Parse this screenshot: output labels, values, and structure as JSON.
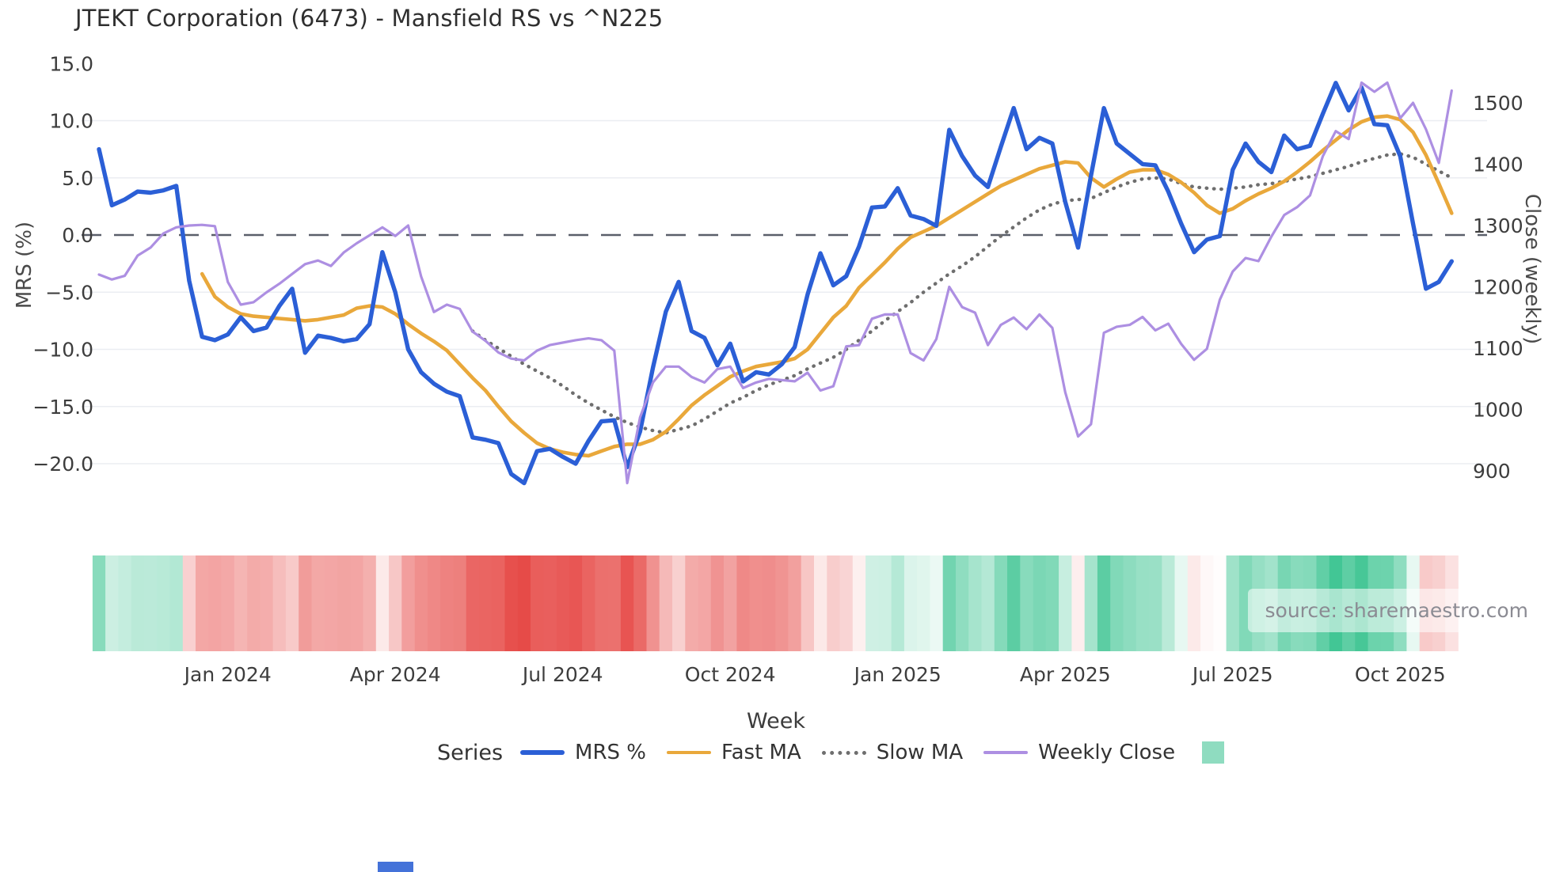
{
  "title": "JTEKT Corporation (6473) - Mansfield RS vs ^N225",
  "source": "source: sharemaestro.com",
  "axes": {
    "left": {
      "label": "MRS (%)",
      "ticks": [
        {
          "label": "15.0",
          "value": 15.0
        },
        {
          "label": "10.0",
          "value": 10.0
        },
        {
          "label": "5.0",
          "value": 5.0
        },
        {
          "label": "0.0",
          "value": 0.0
        },
        {
          "label": "−5.0",
          "value": -5.0
        },
        {
          "label": "−10.0",
          "value": -10.0
        },
        {
          "label": "−15.0",
          "value": -15.0
        },
        {
          "label": "−20.0",
          "value": -20.0
        }
      ]
    },
    "right": {
      "label": "Close (weekly)",
      "ticks": [
        {
          "label": "1500",
          "value": 1500
        },
        {
          "label": "1400",
          "value": 1400
        },
        {
          "label": "1300",
          "value": 1300
        },
        {
          "label": "1200",
          "value": 1200
        },
        {
          "label": "1100",
          "value": 1100
        },
        {
          "label": "1000",
          "value": 1000
        },
        {
          "label": "900",
          "value": 900
        }
      ]
    },
    "x": {
      "label": "Week",
      "ticks": [
        {
          "label": "Jan 2024",
          "week": 10
        },
        {
          "label": "Apr 2024",
          "week": 23
        },
        {
          "label": "Jul 2024",
          "week": 36
        },
        {
          "label": "Oct 2024",
          "week": 49
        },
        {
          "label": "Jan 2025",
          "week": 62
        },
        {
          "label": "Apr 2025",
          "week": 75
        },
        {
          "label": "Jul 2025",
          "week": 88
        },
        {
          "label": "Oct 2025",
          "week": 101
        }
      ]
    }
  },
  "legend": {
    "title": "Series",
    "items": [
      {
        "label": "MRS %",
        "color": "#2b5fd6",
        "style": "solid"
      },
      {
        "label": "Fast MA",
        "color": "#e9a83b",
        "style": "solid"
      },
      {
        "label": "Slow MA",
        "color": "#6e6e6e",
        "style": "dotted"
      },
      {
        "label": "Weekly Close",
        "color": "#ad8fe2",
        "style": "solid"
      }
    ],
    "heat_swatch_color": "#8fdcc0"
  },
  "misc": {
    "bottom_fragment_color": "#4472d9"
  },
  "chart_data": {
    "type": "line",
    "title": "JTEKT Corporation (6473) - Mansfield RS vs ^N225",
    "xlabel": "Week",
    "ylabel_left": "MRS (%)",
    "ylabel_right": "Close (weekly)",
    "ylim_left": [
      -22.5,
      15.5
    ],
    "ylim_right": [
      870,
      1545
    ],
    "grid": "left-ticks only, light; dashed dark line at 0.0",
    "legend_position": "bottom",
    "x_unit": "weekly points, week 0 = late Oct 2023, week 105 = early Nov 2025",
    "zero_line_color": "#5a5f6a",
    "grid_color": "#ebedf2",
    "series": [
      {
        "name": "MRS %",
        "axis": "left",
        "color": "#2b5fd6",
        "style": "solid",
        "values": [
          7.5,
          2.6,
          3.1,
          3.8,
          3.7,
          3.9,
          4.3,
          -4.0,
          -8.9,
          -9.2,
          -8.7,
          -7.2,
          -8.4,
          -8.1,
          -6.2,
          -4.7,
          -10.3,
          -8.8,
          -9.0,
          -9.3,
          -9.1,
          -7.8,
          -1.5,
          -5.0,
          -10.0,
          -12.0,
          -13.0,
          -13.7,
          -14.1,
          -17.7,
          -17.9,
          -18.2,
          -20.9,
          -21.7,
          -18.9,
          -18.7,
          -19.4,
          -20.0,
          -18.0,
          -16.3,
          -16.2,
          -20.3,
          -17.2,
          -11.6,
          -6.7,
          -4.1,
          -8.4,
          -9.0,
          -11.4,
          -9.5,
          -12.8,
          -12.0,
          -12.2,
          -11.3,
          -9.8,
          -5.2,
          -1.6,
          -4.4,
          -3.6,
          -1.0,
          2.4,
          2.5,
          4.1,
          1.7,
          1.4,
          0.8,
          9.2,
          6.9,
          5.2,
          4.2,
          7.7,
          11.1,
          7.5,
          8.5,
          8.0,
          2.9,
          -1.1,
          5.2,
          11.1,
          8.0,
          7.1,
          6.2,
          6.1,
          3.8,
          1.0,
          -1.5,
          -0.4,
          -0.1,
          5.7,
          8.0,
          6.4,
          5.5,
          8.7,
          7.5,
          7.8,
          10.6,
          13.3,
          10.9,
          12.9,
          9.7,
          9.6,
          6.9,
          1.0,
          -4.7,
          -4.1,
          -2.3
        ]
      },
      {
        "name": "Fast MA",
        "axis": "left",
        "color": "#e9a83b",
        "style": "solid",
        "values": [
          null,
          null,
          null,
          null,
          null,
          null,
          null,
          null,
          -3.4,
          -5.4,
          -6.3,
          -6.9,
          -7.1,
          -7.2,
          -7.3,
          -7.4,
          -7.5,
          -7.4,
          -7.2,
          -7.0,
          -6.4,
          -6.2,
          -6.3,
          -6.9,
          -7.8,
          -8.6,
          -9.3,
          -10.1,
          -11.3,
          -12.5,
          -13.6,
          -15.0,
          -16.3,
          -17.3,
          -18.2,
          -18.7,
          -19.0,
          -19.2,
          -19.3,
          -18.9,
          -18.5,
          -18.3,
          -18.3,
          -17.9,
          -17.2,
          -16.1,
          -14.9,
          -14.0,
          -13.2,
          -12.4,
          -11.9,
          -11.5,
          -11.3,
          -11.1,
          -10.8,
          -10.0,
          -8.6,
          -7.2,
          -6.2,
          -4.6,
          -3.5,
          -2.4,
          -1.2,
          -0.2,
          0.3,
          0.8,
          1.5,
          2.2,
          2.9,
          3.6,
          4.3,
          4.8,
          5.3,
          5.8,
          6.1,
          6.4,
          6.3,
          5.0,
          4.2,
          4.9,
          5.5,
          5.7,
          5.7,
          5.3,
          4.6,
          3.7,
          2.6,
          1.9,
          2.3,
          3.0,
          3.6,
          4.1,
          4.7,
          5.5,
          6.4,
          7.4,
          8.3,
          9.2,
          9.9,
          10.3,
          10.4,
          10.1,
          9.0,
          7.0,
          4.5,
          1.9
        ]
      },
      {
        "name": "Slow MA",
        "axis": "left",
        "color": "#6e6e6e",
        "style": "dotted",
        "values": [
          null,
          null,
          null,
          null,
          null,
          null,
          null,
          null,
          null,
          null,
          null,
          null,
          null,
          null,
          null,
          null,
          null,
          null,
          null,
          null,
          null,
          null,
          null,
          null,
          null,
          null,
          null,
          null,
          null,
          -8.4,
          -9.2,
          -9.9,
          -10.6,
          -11.3,
          -11.9,
          -12.5,
          -13.2,
          -14.0,
          -14.7,
          -15.3,
          -15.9,
          -16.4,
          -16.8,
          -17.1,
          -17.3,
          -17.0,
          -16.7,
          -16.1,
          -15.4,
          -14.7,
          -14.2,
          -13.6,
          -13.1,
          -12.7,
          -12.3,
          -11.7,
          -11.2,
          -10.7,
          -10.0,
          -9.2,
          -8.4,
          -7.5,
          -6.7,
          -5.9,
          -5.0,
          -4.2,
          -3.4,
          -2.7,
          -1.9,
          -1.0,
          -0.1,
          0.7,
          1.5,
          2.2,
          2.7,
          3.0,
          3.1,
          3.2,
          3.7,
          4.2,
          4.6,
          4.9,
          5.0,
          4.9,
          4.5,
          4.2,
          4.1,
          4.0,
          4.1,
          4.2,
          4.4,
          4.5,
          4.7,
          4.9,
          5.1,
          5.4,
          5.7,
          6.0,
          6.4,
          6.7,
          7.0,
          7.1,
          6.8,
          6.2,
          5.6,
          5.0
        ]
      },
      {
        "name": "Weekly Close",
        "axis": "right",
        "color": "#ad8fe2",
        "style": "solid",
        "values": [
          1220,
          1212,
          1218,
          1251,
          1264,
          1287,
          1297,
          1300,
          1301,
          1299,
          1208,
          1171,
          1175,
          1191,
          1205,
          1221,
          1237,
          1243,
          1234,
          1256,
          1271,
          1284,
          1297,
          1283,
          1300,
          1217,
          1159,
          1171,
          1164,
          1127,
          1112,
          1093,
          1083,
          1080,
          1096,
          1105,
          1109,
          1113,
          1116,
          1113,
          1096,
          880,
          987,
          1044,
          1070,
          1070,
          1053,
          1044,
          1066,
          1070,
          1035,
          1044,
          1050,
          1048,
          1046,
          1060,
          1031,
          1038,
          1103,
          1105,
          1148,
          1155,
          1155,
          1092,
          1080,
          1115,
          1200,
          1167,
          1158,
          1105,
          1138,
          1150,
          1131,
          1155,
          1133,
          1028,
          956,
          976,
          1125,
          1135,
          1138,
          1151,
          1129,
          1140,
          1107,
          1081,
          1099,
          1179,
          1225,
          1247,
          1242,
          1282,
          1317,
          1330,
          1349,
          1413,
          1454,
          1441,
          1533,
          1518,
          1533,
          1475,
          1500,
          1457,
          1402,
          1520
        ]
      }
    ],
    "heat_strip": {
      "description": "weekly red/green band below plot colored by MRS % value",
      "positive_color": "#2fc08a",
      "negative_color": "#e64946",
      "max_pos": 15,
      "max_neg": -22,
      "gamma": 0.8
    }
  }
}
